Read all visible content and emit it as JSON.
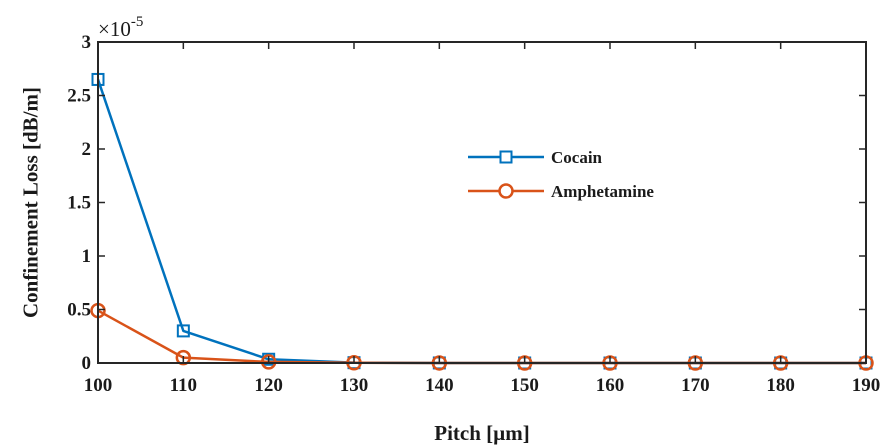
{
  "chart_data": {
    "type": "line",
    "title": "",
    "xlabel": "Pitch [µm]",
    "ylabel": "Confinement Loss [dB/m]",
    "y_multiplier": "×10",
    "y_exponent": "-5",
    "x": [
      100,
      110,
      120,
      130,
      140,
      150,
      160,
      170,
      180,
      190
    ],
    "xlim": [
      100,
      190
    ],
    "ylim": [
      0,
      3
    ],
    "yticks": [
      0,
      0.5,
      1,
      1.5,
      2,
      2.5,
      3
    ],
    "ytick_labels": [
      "0",
      "0.5",
      "1",
      "1.5",
      "2",
      "2.5",
      "3"
    ],
    "grid": false,
    "legend_position": "center-right",
    "series": [
      {
        "name": "Cocain",
        "color": "#0072BD",
        "marker": "square",
        "values": [
          2.65,
          0.3,
          0.035,
          0.003,
          0.0005,
          0.0001,
          0.0,
          0.0,
          0.0,
          0.0
        ]
      },
      {
        "name": "Amphetamine",
        "color": "#D95319",
        "marker": "circle",
        "values": [
          0.49,
          0.05,
          0.01,
          0.002,
          0.0005,
          0.0001,
          0.0,
          0.0,
          0.0,
          0.0
        ]
      }
    ]
  }
}
